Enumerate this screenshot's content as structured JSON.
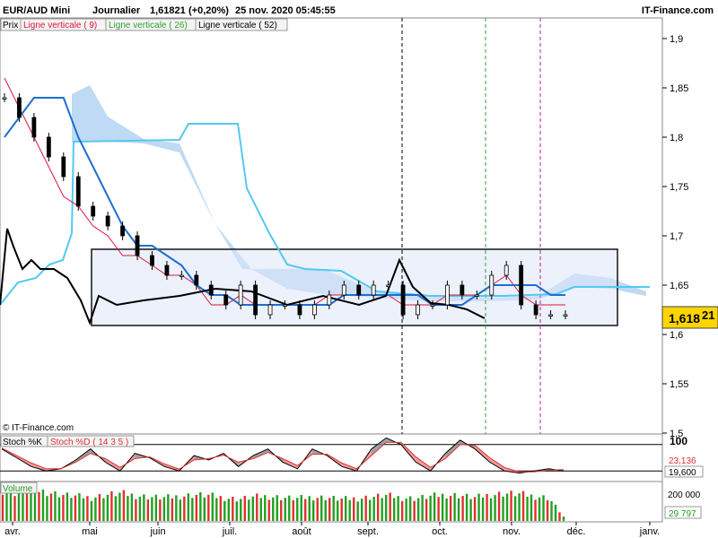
{
  "header": {
    "instrument": "EUR/AUD Mini",
    "period": "Journalier",
    "last": "1,61821",
    "change": "(+0,20%)",
    "datetime": "25 nov. 2020 05:45:55",
    "site": "IT-Finance.com"
  },
  "legend": {
    "prix": "Prix",
    "l9": "Ligne verticale ( 9)",
    "l26": "Ligne verticale ( 26)",
    "l52": "Ligne verticale ( 52)"
  },
  "copyright": "© IT-Finance.com",
  "price_badge": {
    "main": "1,618",
    "sup": "21"
  },
  "stoch": {
    "label_k": "Stoch %K",
    "label_d": "Stoch %D ( 14 3 5 )",
    "tick_100": "100",
    "val_d": "23,136",
    "val_k": "19,600"
  },
  "volume": {
    "label": "Volume",
    "tick": "200 000",
    "val": "29 797"
  },
  "colors": {
    "price": "#000000",
    "tenkan": "#e0143c",
    "kijun": "#1e6ed2",
    "senkou": "#55c8f0",
    "cloud": "#a8cdf0",
    "stoch_k": "#000000",
    "stoch_d": "#e03030",
    "vol_up": "#20a020",
    "vol_down": "#e03030",
    "line9": "#000000",
    "line26": "#30a030",
    "line52": "#c0208a"
  },
  "chart_data": [
    {
      "type": "line",
      "panel": "price",
      "y_ticks": [
        "1,9",
        "1,85",
        "1,8",
        "1,75",
        "1,7",
        "1,65",
        "1,6",
        "1,55",
        "1,5"
      ],
      "ylim": [
        1.5,
        1.9
      ],
      "x_ticks": [
        "avr.",
        "mai",
        "juin",
        "juil.",
        "août",
        "sept.",
        "oct.",
        "nov.",
        "déc.",
        "janv."
      ],
      "x": [
        "2020-03-16",
        "2020-03-20",
        "2020-03-24",
        "2020-03-30",
        "2020-04-03",
        "2020-04-08",
        "2020-04-14",
        "2020-04-20",
        "2020-04-27",
        "2020-05-04",
        "2020-05-11",
        "2020-05-18",
        "2020-05-25",
        "2020-06-01",
        "2020-06-08",
        "2020-06-15",
        "2020-06-22",
        "2020-06-29",
        "2020-07-06",
        "2020-07-13",
        "2020-07-20",
        "2020-07-27",
        "2020-08-03",
        "2020-08-10",
        "2020-08-17",
        "2020-08-24",
        "2020-08-31",
        "2020-09-07",
        "2020-09-14",
        "2020-09-21",
        "2020-09-28",
        "2020-10-05",
        "2020-10-12",
        "2020-10-19",
        "2020-10-26",
        "2020-11-02",
        "2020-11-09",
        "2020-11-16",
        "2020-11-23"
      ],
      "series": [
        {
          "name": "Prix",
          "values": [
            1.84,
            1.82,
            1.8,
            1.78,
            1.76,
            1.73,
            1.72,
            1.71,
            1.7,
            1.68,
            1.67,
            1.66,
            1.66,
            1.65,
            1.64,
            1.63,
            1.65,
            1.62,
            1.63,
            1.63,
            1.62,
            1.63,
            1.64,
            1.65,
            1.64,
            1.65,
            1.65,
            1.62,
            1.63,
            1.63,
            1.65,
            1.64,
            1.64,
            1.66,
            1.67,
            1.63,
            1.62,
            1.62,
            1.62
          ]
        },
        {
          "name": "Ligne verticale ( 9)",
          "values": [
            1.86,
            1.83,
            1.8,
            1.77,
            1.74,
            1.73,
            1.71,
            1.7,
            1.68,
            1.68,
            1.67,
            1.66,
            1.66,
            1.65,
            1.63,
            1.63,
            1.64,
            1.63,
            1.63,
            1.63,
            1.63,
            1.63,
            1.64,
            1.64,
            1.64,
            1.64,
            1.64,
            1.63,
            1.63,
            1.63,
            1.64,
            1.64,
            1.64,
            1.65,
            1.66,
            1.64,
            1.63,
            1.63,
            1.63
          ]
        },
        {
          "name": "Ligne verticale ( 26)",
          "values": [
            1.8,
            1.82,
            1.84,
            1.84,
            1.84,
            1.8,
            1.77,
            1.74,
            1.71,
            1.69,
            1.69,
            1.68,
            1.67,
            1.65,
            1.64,
            1.64,
            1.63,
            1.63,
            1.63,
            1.63,
            1.63,
            1.63,
            1.63,
            1.64,
            1.64,
            1.64,
            1.64,
            1.64,
            1.64,
            1.63,
            1.63,
            1.63,
            1.64,
            1.65,
            1.65,
            1.65,
            1.65,
            1.64,
            1.64
          ]
        }
      ],
      "annotations": [
        "Rectangle consolidation 1,61 – 1,69",
        "Ligne verticale ( 9)",
        "Ligne verticale ( 26)",
        "Ligne verticale ( 52)"
      ]
    },
    {
      "type": "line",
      "panel": "stochastic",
      "ylim": [
        0,
        100
      ],
      "series": [
        {
          "name": "Stoch %K",
          "values": [
            70,
            50,
            30,
            20,
            25,
            45,
            70,
            40,
            20,
            60,
            50,
            30,
            20,
            55,
            45,
            60,
            30,
            55,
            70,
            40,
            25,
            70,
            55,
            30,
            20,
            70,
            95,
            80,
            40,
            20,
            60,
            90,
            70,
            40,
            20,
            15,
            20,
            25,
            20
          ]
        },
        {
          "name": "Stoch %D ( 14 3 5 )",
          "values": [
            72,
            55,
            38,
            25,
            25,
            40,
            60,
            48,
            28,
            48,
            52,
            36,
            24,
            45,
            48,
            56,
            40,
            48,
            62,
            48,
            32,
            58,
            58,
            38,
            25,
            55,
            85,
            85,
            52,
            28,
            48,
            80,
            78,
            50,
            28,
            18,
            18,
            22,
            23
          ]
        }
      ]
    },
    {
      "type": "bar",
      "panel": "volume",
      "ylim": [
        0,
        250000
      ],
      "values": [
        210000,
        190000,
        220000,
        200000,
        180000,
        170000,
        160000,
        180000,
        190000,
        175000,
        165000,
        160000,
        170000,
        180000,
        175000,
        160000,
        150000,
        165000,
        170000,
        160000,
        155000,
        165000,
        160000,
        150000,
        155000,
        165000,
        175000,
        160000,
        155000,
        170000,
        180000,
        175000,
        160000,
        180000,
        190000,
        185000,
        170000,
        160000,
        29797
      ]
    }
  ]
}
